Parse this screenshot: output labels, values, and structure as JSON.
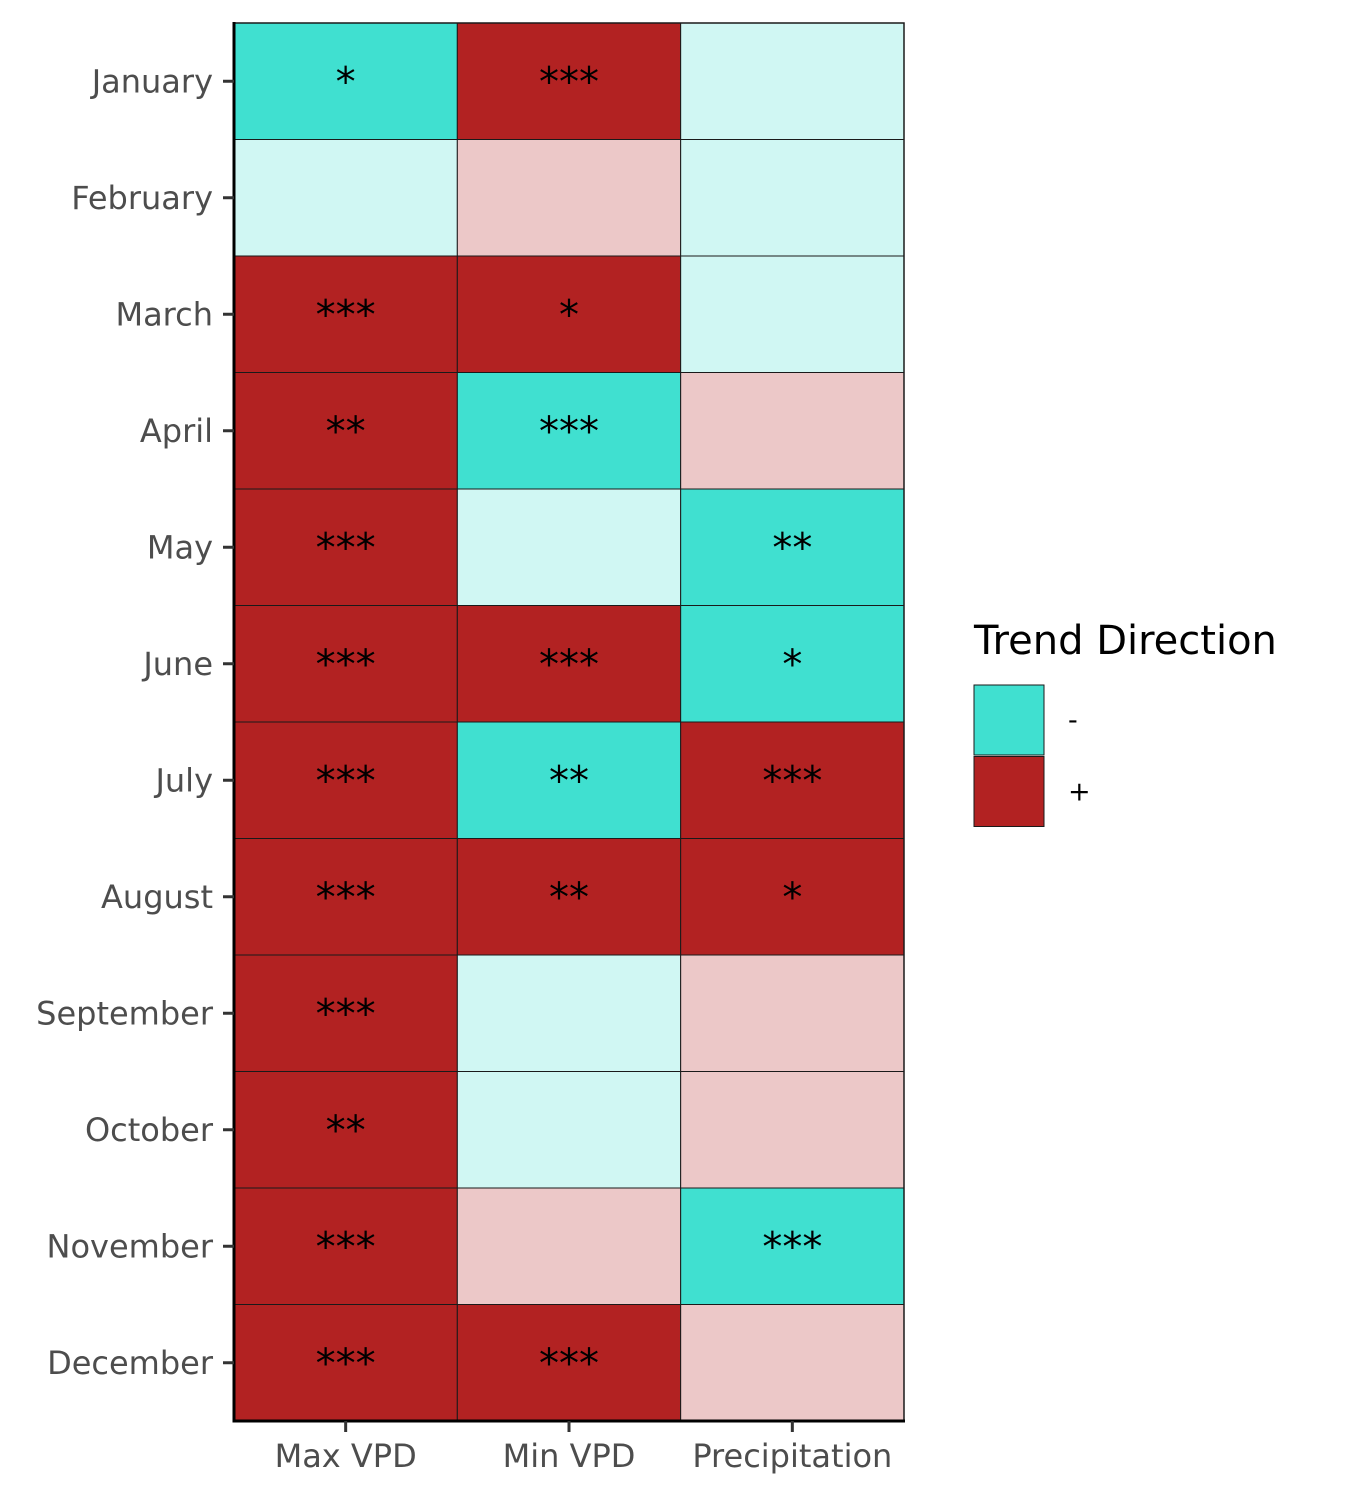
{
  "chart_data": {
    "type": "heatmap",
    "title": "",
    "xlabel": "",
    "ylabel": "",
    "x_categories": [
      "Max VPD",
      "Min VPD",
      "Precipitation"
    ],
    "y_categories": [
      "January",
      "February",
      "March",
      "April",
      "May",
      "June",
      "July",
      "August",
      "September",
      "October",
      "November",
      "December"
    ],
    "cells": [
      {
        "month": "January",
        "variable": "Max VPD",
        "direction": "-",
        "significant": true,
        "stars": "*"
      },
      {
        "month": "January",
        "variable": "Min VPD",
        "direction": "+",
        "significant": true,
        "stars": "***"
      },
      {
        "month": "January",
        "variable": "Precipitation",
        "direction": "-",
        "significant": false,
        "stars": ""
      },
      {
        "month": "February",
        "variable": "Max VPD",
        "direction": "-",
        "significant": false,
        "stars": ""
      },
      {
        "month": "February",
        "variable": "Min VPD",
        "direction": "+",
        "significant": false,
        "stars": ""
      },
      {
        "month": "February",
        "variable": "Precipitation",
        "direction": "-",
        "significant": false,
        "stars": ""
      },
      {
        "month": "March",
        "variable": "Max VPD",
        "direction": "+",
        "significant": true,
        "stars": "***"
      },
      {
        "month": "March",
        "variable": "Min VPD",
        "direction": "+",
        "significant": true,
        "stars": "*"
      },
      {
        "month": "March",
        "variable": "Precipitation",
        "direction": "-",
        "significant": false,
        "stars": ""
      },
      {
        "month": "April",
        "variable": "Max VPD",
        "direction": "+",
        "significant": true,
        "stars": "**"
      },
      {
        "month": "April",
        "variable": "Min VPD",
        "direction": "-",
        "significant": true,
        "stars": "***"
      },
      {
        "month": "April",
        "variable": "Precipitation",
        "direction": "+",
        "significant": false,
        "stars": ""
      },
      {
        "month": "May",
        "variable": "Max VPD",
        "direction": "+",
        "significant": true,
        "stars": "***"
      },
      {
        "month": "May",
        "variable": "Min VPD",
        "direction": "-",
        "significant": false,
        "stars": ""
      },
      {
        "month": "May",
        "variable": "Precipitation",
        "direction": "-",
        "significant": true,
        "stars": "**"
      },
      {
        "month": "June",
        "variable": "Max VPD",
        "direction": "+",
        "significant": true,
        "stars": "***"
      },
      {
        "month": "June",
        "variable": "Min VPD",
        "direction": "+",
        "significant": true,
        "stars": "***"
      },
      {
        "month": "June",
        "variable": "Precipitation",
        "direction": "-",
        "significant": true,
        "stars": "*"
      },
      {
        "month": "July",
        "variable": "Max VPD",
        "direction": "+",
        "significant": true,
        "stars": "***"
      },
      {
        "month": "July",
        "variable": "Min VPD",
        "direction": "-",
        "significant": true,
        "stars": "**"
      },
      {
        "month": "July",
        "variable": "Precipitation",
        "direction": "+",
        "significant": true,
        "stars": "***"
      },
      {
        "month": "August",
        "variable": "Max VPD",
        "direction": "+",
        "significant": true,
        "stars": "***"
      },
      {
        "month": "August",
        "variable": "Min VPD",
        "direction": "+",
        "significant": true,
        "stars": "**"
      },
      {
        "month": "August",
        "variable": "Precipitation",
        "direction": "+",
        "significant": true,
        "stars": "*"
      },
      {
        "month": "September",
        "variable": "Max VPD",
        "direction": "+",
        "significant": true,
        "stars": "***"
      },
      {
        "month": "September",
        "variable": "Min VPD",
        "direction": "-",
        "significant": false,
        "stars": ""
      },
      {
        "month": "September",
        "variable": "Precipitation",
        "direction": "+",
        "significant": false,
        "stars": ""
      },
      {
        "month": "October",
        "variable": "Max VPD",
        "direction": "+",
        "significant": true,
        "stars": "**"
      },
      {
        "month": "October",
        "variable": "Min VPD",
        "direction": "-",
        "significant": false,
        "stars": ""
      },
      {
        "month": "October",
        "variable": "Precipitation",
        "direction": "+",
        "significant": false,
        "stars": ""
      },
      {
        "month": "November",
        "variable": "Max VPD",
        "direction": "+",
        "significant": true,
        "stars": "***"
      },
      {
        "month": "November",
        "variable": "Min VPD",
        "direction": "+",
        "significant": false,
        "stars": ""
      },
      {
        "month": "November",
        "variable": "Precipitation",
        "direction": "-",
        "significant": true,
        "stars": "***"
      },
      {
        "month": "December",
        "variable": "Max VPD",
        "direction": "+",
        "significant": true,
        "stars": "***"
      },
      {
        "month": "December",
        "variable": "Min VPD",
        "direction": "+",
        "significant": true,
        "stars": "***"
      },
      {
        "month": "December",
        "variable": "Precipitation",
        "direction": "+",
        "significant": false,
        "stars": ""
      }
    ],
    "legend": {
      "title": "Trend Direction",
      "placement": "right",
      "entries": [
        {
          "label": "-",
          "color": "#40E0D0"
        },
        {
          "label": "+",
          "color": "#B22222"
        }
      ]
    },
    "colors": {
      "negative_significant": "#40E0D0",
      "negative_nonsignificant": "#D0F7F3",
      "positive_significant": "#B22222",
      "positive_nonsignificant": "#ECC8C8"
    },
    "grid": false
  }
}
